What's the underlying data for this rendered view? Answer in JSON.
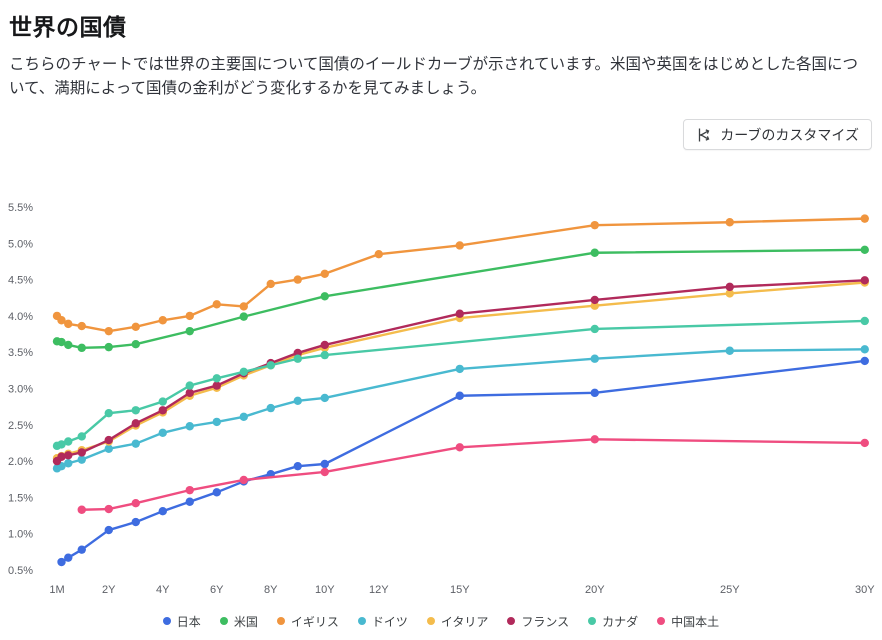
{
  "page": {
    "title": "世界の国債",
    "description": "こちらのチャートでは世界の主要国について国債のイールドカーブが示されています。米国や英国をはじめとした各国について、満期によって国債の金利がどう変化するかを見てみましょう。"
  },
  "toolbar": {
    "customize_label": "カーブのカスタマイズ",
    "customize_icon": "curve-fork-icon"
  },
  "chart_data": {
    "type": "line",
    "title": "世界の国債",
    "ylim": [
      0.5,
      5.5
    ],
    "grid": false,
    "legend_position": "bottom",
    "y_axis": [
      {
        "label": "5.5%",
        "value": 5.5
      },
      {
        "label": "5.0%",
        "value": 5.0
      },
      {
        "label": "4.5%",
        "value": 4.5
      },
      {
        "label": "4.0%",
        "value": 4.0
      },
      {
        "label": "3.5%",
        "value": 3.5
      },
      {
        "label": "3.0%",
        "value": 3.0
      },
      {
        "label": "2.5%",
        "value": 2.5
      },
      {
        "label": "2.0%",
        "value": 2.0
      },
      {
        "label": "1.5%",
        "value": 1.5
      },
      {
        "label": "1.0%",
        "value": 1.0
      },
      {
        "label": "0.5%",
        "value": 0.5
      }
    ],
    "x_axis": [
      {
        "label": "1M",
        "years": 0.083
      },
      {
        "label": "2Y",
        "years": 2
      },
      {
        "label": "4Y",
        "years": 4
      },
      {
        "label": "6Y",
        "years": 6
      },
      {
        "label": "8Y",
        "years": 8
      },
      {
        "label": "10Y",
        "years": 10
      },
      {
        "label": "12Y",
        "years": 12
      },
      {
        "label": "15Y",
        "years": 15
      },
      {
        "label": "20Y",
        "years": 20
      },
      {
        "label": "25Y",
        "years": 25
      },
      {
        "label": "30Y",
        "years": 30
      }
    ],
    "series": [
      {
        "name": "日本",
        "color": "#3e6ce0",
        "points": [
          [
            "3M",
            0.25,
            0.61
          ],
          [
            "6M",
            0.5,
            0.67
          ],
          [
            "1Y",
            1,
            0.78
          ],
          [
            "2Y",
            2,
            1.05
          ],
          [
            "3Y",
            3,
            1.16
          ],
          [
            "4Y",
            4,
            1.31
          ],
          [
            "5Y",
            5,
            1.44
          ],
          [
            "6Y",
            6,
            1.57
          ],
          [
            "7Y",
            7,
            1.72
          ],
          [
            "8Y",
            8,
            1.82
          ],
          [
            "9Y",
            9,
            1.93
          ],
          [
            "10Y",
            10,
            1.96
          ],
          [
            "15Y",
            15,
            2.9
          ],
          [
            "20Y",
            20,
            2.94
          ],
          [
            "30Y",
            30,
            3.38
          ]
        ]
      },
      {
        "name": "米国",
        "color": "#3dbd61",
        "points": [
          [
            "1M",
            0.083,
            3.65
          ],
          [
            "3M",
            0.25,
            3.64
          ],
          [
            "6M",
            0.5,
            3.6
          ],
          [
            "1Y",
            1,
            3.56
          ],
          [
            "2Y",
            2,
            3.57
          ],
          [
            "3Y",
            3,
            3.61
          ],
          [
            "5Y",
            5,
            3.79
          ],
          [
            "7Y",
            7,
            3.99
          ],
          [
            "10Y",
            10,
            4.27
          ],
          [
            "20Y",
            20,
            4.87
          ],
          [
            "30Y",
            30,
            4.91
          ]
        ]
      },
      {
        "name": "イギリス",
        "color": "#f0953e",
        "points": [
          [
            "1M",
            0.083,
            4.0
          ],
          [
            "3M",
            0.25,
            3.94
          ],
          [
            "6M",
            0.5,
            3.89
          ],
          [
            "1Y",
            1,
            3.86
          ],
          [
            "2Y",
            2,
            3.79
          ],
          [
            "3Y",
            3,
            3.85
          ],
          [
            "4Y",
            4,
            3.94
          ],
          [
            "5Y",
            5,
            4.0
          ],
          [
            "6Y",
            6,
            4.16
          ],
          [
            "7Y",
            7,
            4.13
          ],
          [
            "8Y",
            8,
            4.44
          ],
          [
            "9Y",
            9,
            4.5
          ],
          [
            "10Y",
            10,
            4.58
          ],
          [
            "12Y",
            12,
            4.85
          ],
          [
            "15Y",
            15,
            4.97
          ],
          [
            "20Y",
            20,
            5.25
          ],
          [
            "25Y",
            25,
            5.29
          ],
          [
            "30Y",
            30,
            5.34
          ]
        ]
      },
      {
        "name": "ドイツ",
        "color": "#49b9d0",
        "points": [
          [
            "1M",
            0.083,
            1.9
          ],
          [
            "3M",
            0.25,
            1.93
          ],
          [
            "6M",
            0.5,
            1.97
          ],
          [
            "1Y",
            1,
            2.02
          ],
          [
            "2Y",
            2,
            2.17
          ],
          [
            "3Y",
            3,
            2.24
          ],
          [
            "4Y",
            4,
            2.39
          ],
          [
            "5Y",
            5,
            2.48
          ],
          [
            "6Y",
            6,
            2.54
          ],
          [
            "7Y",
            7,
            2.61
          ],
          [
            "8Y",
            8,
            2.73
          ],
          [
            "9Y",
            9,
            2.83
          ],
          [
            "10Y",
            10,
            2.87
          ],
          [
            "15Y",
            15,
            3.27
          ],
          [
            "20Y",
            20,
            3.41
          ],
          [
            "25Y",
            25,
            3.52
          ],
          [
            "30Y",
            30,
            3.54
          ]
        ]
      },
      {
        "name": "イタリア",
        "color": "#f4bc4c",
        "points": [
          [
            "1M",
            0.083,
            2.04
          ],
          [
            "3M",
            0.25,
            2.07
          ],
          [
            "6M",
            0.5,
            2.1
          ],
          [
            "1Y",
            1,
            2.15
          ],
          [
            "2Y",
            2,
            2.27
          ],
          [
            "3Y",
            3,
            2.49
          ],
          [
            "4Y",
            4,
            2.67
          ],
          [
            "5Y",
            5,
            2.9
          ],
          [
            "6Y",
            6,
            3.01
          ],
          [
            "7Y",
            7,
            3.18
          ],
          [
            "8Y",
            8,
            3.32
          ],
          [
            "9Y",
            9,
            3.46
          ],
          [
            "10Y",
            10,
            3.56
          ],
          [
            "15Y",
            15,
            3.97
          ],
          [
            "20Y",
            20,
            4.14
          ],
          [
            "25Y",
            25,
            4.31
          ],
          [
            "30Y",
            30,
            4.46
          ]
        ]
      },
      {
        "name": "フランス",
        "color": "#b12a5b",
        "points": [
          [
            "1M",
            0.083,
            2.0
          ],
          [
            "3M",
            0.25,
            2.06
          ],
          [
            "6M",
            0.5,
            2.08
          ],
          [
            "1Y",
            1,
            2.12
          ],
          [
            "2Y",
            2,
            2.29
          ],
          [
            "3Y",
            3,
            2.52
          ],
          [
            "4Y",
            4,
            2.7
          ],
          [
            "5Y",
            5,
            2.94
          ],
          [
            "6Y",
            6,
            3.04
          ],
          [
            "7Y",
            7,
            3.21
          ],
          [
            "8Y",
            8,
            3.35
          ],
          [
            "9Y",
            9,
            3.49
          ],
          [
            "10Y",
            10,
            3.6
          ],
          [
            "15Y",
            15,
            4.03
          ],
          [
            "20Y",
            20,
            4.22
          ],
          [
            "25Y",
            25,
            4.4
          ],
          [
            "30Y",
            30,
            4.49
          ]
        ]
      },
      {
        "name": "カナダ",
        "color": "#49c9a6",
        "points": [
          [
            "1M",
            0.083,
            2.21
          ],
          [
            "3M",
            0.25,
            2.23
          ],
          [
            "6M",
            0.5,
            2.27
          ],
          [
            "1Y",
            1,
            2.34
          ],
          [
            "2Y",
            2,
            2.66
          ],
          [
            "3Y",
            3,
            2.7
          ],
          [
            "4Y",
            4,
            2.82
          ],
          [
            "5Y",
            5,
            3.04
          ],
          [
            "6Y",
            6,
            3.14
          ],
          [
            "7Y",
            7,
            3.23
          ],
          [
            "8Y",
            8,
            3.32
          ],
          [
            "9Y",
            9,
            3.41
          ],
          [
            "10Y",
            10,
            3.46
          ],
          [
            "20Y",
            20,
            3.82
          ],
          [
            "30Y",
            30,
            3.93
          ]
        ]
      },
      {
        "name": "中国本土",
        "color": "#ef4d80",
        "points": [
          [
            "1Y",
            1,
            1.33
          ],
          [
            "2Y",
            2,
            1.34
          ],
          [
            "3Y",
            3,
            1.42
          ],
          [
            "5Y",
            5,
            1.6
          ],
          [
            "7Y",
            7,
            1.74
          ],
          [
            "10Y",
            10,
            1.85
          ],
          [
            "15Y",
            15,
            2.19
          ],
          [
            "20Y",
            20,
            2.3
          ],
          [
            "30Y",
            30,
            2.25
          ]
        ]
      }
    ],
    "legend_order": [
      "日本",
      "米国",
      "イギリス",
      "ドイツ",
      "フランス",
      "イタリア",
      "カナダ",
      "中国本土"
    ]
  }
}
